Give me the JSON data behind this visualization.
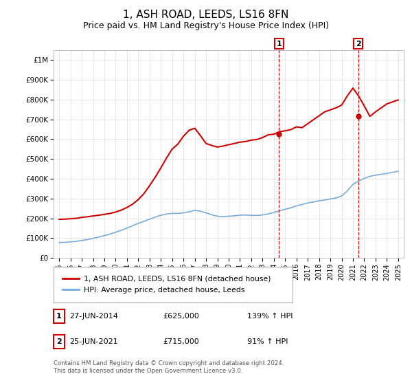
{
  "title": "1, ASH ROAD, LEEDS, LS16 8FN",
  "subtitle": "Price paid vs. HM Land Registry's House Price Index (HPI)",
  "title_fontsize": 11,
  "subtitle_fontsize": 9,
  "background_color": "#ffffff",
  "plot_bg_color": "#ffffff",
  "grid_color": "#dddddd",
  "red_line_color": "#cc0000",
  "blue_line_color": "#77aadd",
  "ylabel": "",
  "xlabel": "",
  "ylim": [
    0,
    1050000
  ],
  "xlim_start": 1994.5,
  "xlim_end": 2025.5,
  "yticks": [
    0,
    100000,
    200000,
    300000,
    400000,
    500000,
    600000,
    700000,
    800000,
    900000,
    1000000
  ],
  "ytick_labels": [
    "£0",
    "£100K",
    "£200K",
    "£300K",
    "£400K",
    "£500K",
    "£600K",
    "£700K",
    "£800K",
    "£900K",
    "£1M"
  ],
  "xticks": [
    1995,
    1996,
    1997,
    1998,
    1999,
    2000,
    2001,
    2002,
    2003,
    2004,
    2005,
    2006,
    2007,
    2008,
    2009,
    2010,
    2011,
    2012,
    2013,
    2014,
    2015,
    2016,
    2017,
    2018,
    2019,
    2020,
    2021,
    2022,
    2023,
    2024,
    2025
  ],
  "red_x": [
    1995.0,
    1995.5,
    1996.0,
    1996.5,
    1997.0,
    1997.5,
    1998.0,
    1998.5,
    1999.0,
    1999.5,
    2000.0,
    2000.5,
    2001.0,
    2001.5,
    2002.0,
    2002.5,
    2003.0,
    2003.5,
    2004.0,
    2004.5,
    2005.0,
    2005.5,
    2006.0,
    2006.5,
    2007.0,
    2007.5,
    2008.0,
    2008.5,
    2009.0,
    2009.5,
    2010.0,
    2010.5,
    2011.0,
    2011.5,
    2012.0,
    2012.5,
    2013.0,
    2013.5,
    2014.0,
    2014.5,
    2015.0,
    2015.5,
    2016.0,
    2016.5,
    2017.0,
    2017.5,
    2018.0,
    2018.5,
    2019.0,
    2019.5,
    2020.0,
    2020.5,
    2021.0,
    2021.5,
    2022.0,
    2022.5,
    2023.0,
    2023.5,
    2024.0,
    2024.5,
    2025.0
  ],
  "red_y": [
    195000,
    196000,
    198000,
    200000,
    205000,
    208000,
    212000,
    216000,
    220000,
    225000,
    232000,
    242000,
    255000,
    272000,
    295000,
    325000,
    365000,
    408000,
    455000,
    505000,
    550000,
    575000,
    615000,
    645000,
    655000,
    618000,
    578000,
    568000,
    560000,
    565000,
    572000,
    578000,
    585000,
    588000,
    595000,
    598000,
    608000,
    622000,
    625000,
    638000,
    642000,
    648000,
    662000,
    658000,
    678000,
    698000,
    718000,
    738000,
    748000,
    758000,
    772000,
    818000,
    858000,
    818000,
    768000,
    715000,
    738000,
    758000,
    778000,
    788000,
    798000
  ],
  "blue_x": [
    1995.0,
    1995.5,
    1996.0,
    1996.5,
    1997.0,
    1997.5,
    1998.0,
    1998.5,
    1999.0,
    1999.5,
    2000.0,
    2000.5,
    2001.0,
    2001.5,
    2002.0,
    2002.5,
    2003.0,
    2003.5,
    2004.0,
    2004.5,
    2005.0,
    2005.5,
    2006.0,
    2006.5,
    2007.0,
    2007.5,
    2008.0,
    2008.5,
    2009.0,
    2009.5,
    2010.0,
    2010.5,
    2011.0,
    2011.5,
    2012.0,
    2012.5,
    2013.0,
    2013.5,
    2014.0,
    2014.5,
    2015.0,
    2015.5,
    2016.0,
    2016.5,
    2017.0,
    2017.5,
    2018.0,
    2018.5,
    2019.0,
    2019.5,
    2020.0,
    2020.5,
    2021.0,
    2021.5,
    2022.0,
    2022.5,
    2023.0,
    2023.5,
    2024.0,
    2024.5,
    2025.0
  ],
  "blue_y": [
    78000,
    79000,
    81000,
    84000,
    88000,
    93000,
    99000,
    106000,
    113000,
    121000,
    130000,
    140000,
    151000,
    163000,
    175000,
    185000,
    196000,
    206000,
    216000,
    222000,
    225000,
    225000,
    228000,
    233000,
    240000,
    236000,
    228000,
    218000,
    211000,
    209000,
    211000,
    213000,
    216000,
    217000,
    215000,
    215000,
    217000,
    222000,
    230000,
    238000,
    246000,
    253000,
    263000,
    270000,
    278000,
    283000,
    288000,
    293000,
    298000,
    303000,
    313000,
    338000,
    372000,
    388000,
    402000,
    412000,
    418000,
    422000,
    427000,
    432000,
    438000
  ],
  "marker1_x": 2014.46,
  "marker1_y": 625000,
  "marker2_x": 2021.46,
  "marker2_y": 715000,
  "marker1_label": "1",
  "marker2_label": "2",
  "legend_label_red": "1, ASH ROAD, LEEDS, LS16 8FN (detached house)",
  "legend_label_blue": "HPI: Average price, detached house, Leeds",
  "table_rows": [
    {
      "num": "1",
      "date": "27-JUN-2014",
      "price": "£625,000",
      "hpi": "139% ↑ HPI"
    },
    {
      "num": "2",
      "date": "25-JUN-2021",
      "price": "£715,000",
      "hpi": "91% ↑ HPI"
    }
  ],
  "footer_line1": "Contains HM Land Registry data © Crown copyright and database right 2024.",
  "footer_line2": "This data is licensed under the Open Government Licence v3.0.",
  "marker_box_color": "#cc0000",
  "marker_dashed_color": "#cc0000"
}
